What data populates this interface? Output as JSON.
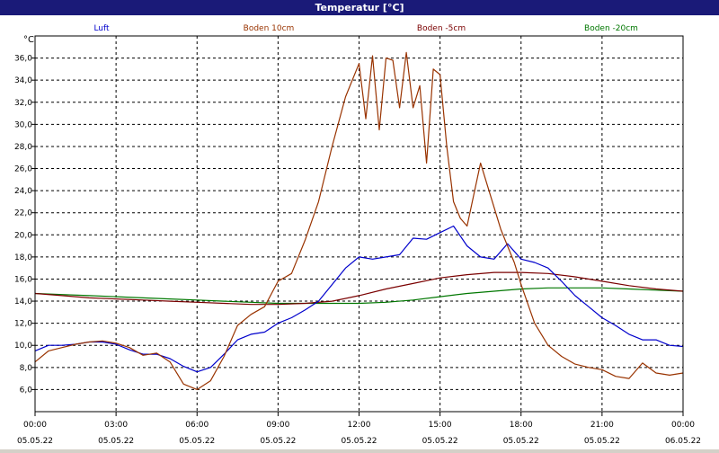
{
  "window": {
    "title": "Temperatur [°C]"
  },
  "chart_data": {
    "type": "line",
    "title": "Temperatur [°C]",
    "ylabel": "°C",
    "ylim": [
      4,
      38
    ],
    "yticks": [
      6,
      8,
      10,
      12,
      14,
      16,
      18,
      20,
      22,
      24,
      26,
      28,
      30,
      32,
      34,
      36
    ],
    "ytick_labels": [
      "6,0",
      "8,0",
      "10,0",
      "12,0",
      "14,0",
      "16,0",
      "18,0",
      "20,0",
      "22,0",
      "24,0",
      "26,0",
      "28,0",
      "30,0",
      "32,0",
      "34,0",
      "36,0"
    ],
    "xlim": [
      0,
      24
    ],
    "xticks": [
      0,
      3,
      6,
      9,
      12,
      15,
      18,
      21,
      24
    ],
    "xtick_time_labels": [
      "00:00",
      "03:00",
      "06:00",
      "09:00",
      "12:00",
      "15:00",
      "18:00",
      "21:00",
      "00:00"
    ],
    "xtick_date_labels": [
      "05.05.22",
      "05.05.22",
      "05.05.22",
      "05.05.22",
      "05.05.22",
      "05.05.22",
      "05.05.22",
      "05.05.22",
      "06.05.22"
    ],
    "grid": true,
    "legend_position": "top",
    "series": [
      {
        "name": "Luft",
        "color": "#0000cc",
        "x": [
          0,
          0.5,
          1,
          1.5,
          2,
          2.5,
          3,
          3.5,
          4,
          4.5,
          5,
          5.5,
          6,
          6.5,
          7,
          7.5,
          8,
          8.5,
          9,
          9.5,
          10,
          10.5,
          11,
          11.5,
          12,
          12.5,
          13,
          13.5,
          14,
          14.5,
          15,
          15.5,
          16,
          16.5,
          17,
          17.5,
          18,
          18.5,
          19,
          19.5,
          20,
          20.5,
          21,
          21.5,
          22,
          22.5,
          23,
          23.5,
          24
        ],
        "y": [
          9.5,
          10,
          10,
          10.1,
          10.3,
          10.3,
          10.1,
          9.6,
          9.2,
          9.2,
          8.8,
          8.1,
          7.6,
          8,
          9.2,
          10.5,
          11,
          11.2,
          12,
          12.5,
          13.2,
          14,
          15.5,
          17,
          18,
          17.8,
          18,
          18.2,
          19.7,
          19.6,
          20.2,
          20.8,
          19,
          18,
          17.8,
          19.2,
          17.8,
          17.5,
          17,
          15.8,
          14.5,
          13.5,
          12.5,
          11.8,
          11,
          10.5,
          10.5,
          10,
          9.9
        ]
      },
      {
        "name": "Boden 10cm",
        "color": "#993300",
        "x": [
          0,
          0.5,
          1,
          1.5,
          2,
          2.5,
          3,
          3.5,
          4,
          4.5,
          5,
          5.5,
          6,
          6.5,
          7,
          7.5,
          8,
          8.5,
          9,
          9.5,
          10,
          10.5,
          11,
          11.5,
          12,
          12.25,
          12.5,
          12.75,
          13,
          13.25,
          13.5,
          13.75,
          14,
          14.25,
          14.5,
          14.75,
          15,
          15.25,
          15.5,
          15.75,
          16,
          16.5,
          17,
          17.25,
          17.5,
          17.75,
          18,
          18.5,
          19,
          19.5,
          20,
          20.5,
          21,
          21.5,
          22,
          22.5,
          23,
          23.5,
          24
        ],
        "y": [
          8.5,
          9.5,
          9.8,
          10.1,
          10.3,
          10.4,
          10.2,
          9.8,
          9.1,
          9.3,
          8.5,
          6.5,
          6,
          6.8,
          9,
          11.8,
          12.8,
          13.5,
          15.8,
          16.5,
          19.5,
          23,
          28,
          32.5,
          35.5,
          30.5,
          36.2,
          29.5,
          36,
          35.8,
          31.5,
          36.5,
          31.5,
          33.5,
          26.5,
          35,
          34.5,
          28,
          23,
          21.5,
          20.8,
          26.5,
          22.5,
          20.5,
          19,
          17.5,
          15.5,
          12,
          10,
          9,
          8.3,
          8,
          7.8,
          7.2,
          7,
          8.4,
          7.5,
          7.3,
          7.5
        ]
      },
      {
        "name": "Boden -5cm",
        "color": "#7a0000",
        "x": [
          0,
          1,
          2,
          3,
          4,
          5,
          6,
          7,
          8,
          9,
          10,
          11,
          12,
          13,
          14,
          15,
          16,
          17,
          18,
          19,
          20,
          21,
          22,
          23,
          24
        ],
        "y": [
          14.7,
          14.5,
          14.3,
          14.2,
          14.1,
          14,
          13.9,
          13.8,
          13.7,
          13.7,
          13.8,
          14,
          14.5,
          15.1,
          15.6,
          16.1,
          16.4,
          16.6,
          16.6,
          16.5,
          16.2,
          15.8,
          15.4,
          15.1,
          14.9
        ]
      },
      {
        "name": "Boden -20cm",
        "color": "#007700",
        "x": [
          0,
          1,
          2,
          3,
          4,
          5,
          6,
          7,
          8,
          9,
          10,
          11,
          12,
          13,
          14,
          15,
          16,
          17,
          18,
          19,
          20,
          21,
          22,
          23,
          24
        ],
        "y": [
          14.7,
          14.6,
          14.5,
          14.4,
          14.3,
          14.2,
          14.1,
          14,
          13.9,
          13.8,
          13.8,
          13.8,
          13.8,
          13.9,
          14.1,
          14.4,
          14.7,
          14.9,
          15.1,
          15.2,
          15.2,
          15.2,
          15.1,
          15,
          14.9
        ]
      }
    ]
  }
}
